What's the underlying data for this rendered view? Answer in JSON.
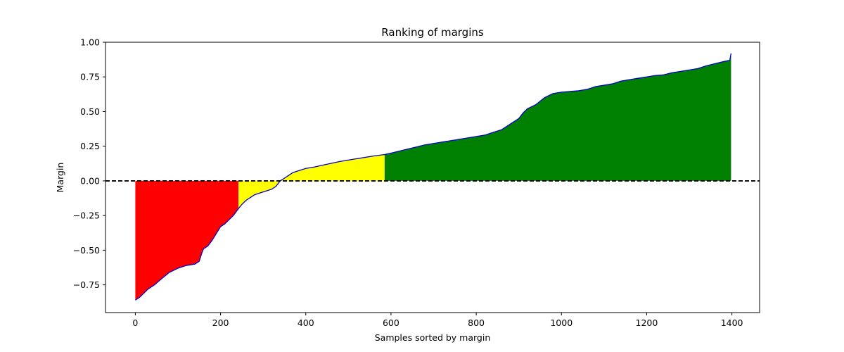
{
  "chart_data": {
    "type": "area",
    "title": "Ranking of margins",
    "xlabel": "Samples sorted by margin",
    "ylabel": "Margin",
    "xlim": [
      -70,
      1465
    ],
    "ylim": [
      -0.95,
      1.0
    ],
    "xticks": [
      0,
      200,
      400,
      600,
      800,
      1000,
      1200,
      1400
    ],
    "yticks": [
      -0.75,
      -0.5,
      -0.25,
      0.0,
      0.25,
      0.5,
      0.75,
      1.0
    ],
    "xtick_labels": [
      "0",
      "200",
      "400",
      "600",
      "800",
      "1000",
      "1200",
      "1400"
    ],
    "ytick_labels": [
      "−0.75",
      "−0.50",
      "−0.25",
      "0.00",
      "0.25",
      "0.50",
      "0.75",
      "1.00"
    ],
    "grid": false,
    "reference_line": {
      "y": 0.0,
      "style": "dashed",
      "color": "#000000"
    },
    "curve_color": "#0000cc",
    "regions": [
      {
        "x_start": 0,
        "x_end": 242,
        "color": "#ff0000"
      },
      {
        "x_start": 242,
        "x_end": 585,
        "color": "#ffff00"
      },
      {
        "x_start": 585,
        "x_end": 1398,
        "color": "#008000"
      }
    ],
    "series": [
      {
        "x": [
          0,
          10,
          20,
          30,
          45,
          60,
          80,
          100,
          120,
          140,
          150,
          155,
          160,
          170,
          180,
          190,
          200,
          210,
          220,
          230,
          242,
          250,
          260,
          270,
          280,
          300,
          320,
          330,
          340,
          350,
          360,
          370,
          380,
          400,
          420,
          450,
          480,
          520,
          560,
          585,
          600,
          640,
          680,
          720,
          760,
          800,
          820,
          840,
          860,
          880,
          900,
          910,
          920,
          940,
          960,
          980,
          1000,
          1020,
          1040,
          1060,
          1080,
          1100,
          1120,
          1140,
          1160,
          1180,
          1200,
          1220,
          1240,
          1260,
          1280,
          1300,
          1320,
          1340,
          1360,
          1380,
          1395,
          1398
        ],
        "y": [
          -0.86,
          -0.84,
          -0.81,
          -0.78,
          -0.75,
          -0.71,
          -0.66,
          -0.63,
          -0.61,
          -0.6,
          -0.58,
          -0.53,
          -0.49,
          -0.47,
          -0.43,
          -0.38,
          -0.33,
          -0.31,
          -0.28,
          -0.25,
          -0.2,
          -0.17,
          -0.14,
          -0.12,
          -0.1,
          -0.08,
          -0.06,
          -0.04,
          0.0,
          0.02,
          0.04,
          0.06,
          0.07,
          0.09,
          0.1,
          0.12,
          0.14,
          0.16,
          0.18,
          0.19,
          0.2,
          0.23,
          0.26,
          0.28,
          0.3,
          0.32,
          0.33,
          0.35,
          0.37,
          0.41,
          0.45,
          0.49,
          0.52,
          0.55,
          0.6,
          0.63,
          0.64,
          0.645,
          0.65,
          0.66,
          0.68,
          0.69,
          0.7,
          0.72,
          0.73,
          0.74,
          0.75,
          0.76,
          0.765,
          0.78,
          0.79,
          0.8,
          0.81,
          0.83,
          0.845,
          0.86,
          0.87,
          0.92
        ]
      }
    ]
  }
}
